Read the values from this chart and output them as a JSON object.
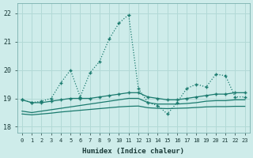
{
  "xlabel": "Humidex (Indice chaleur)",
  "xlim": [
    -0.5,
    23.5
  ],
  "ylim": [
    17.8,
    22.35
  ],
  "yticks": [
    18,
    19,
    20,
    21,
    22
  ],
  "xticks": [
    0,
    1,
    2,
    3,
    4,
    5,
    6,
    7,
    8,
    9,
    10,
    11,
    12,
    13,
    14,
    15,
    16,
    17,
    18,
    19,
    20,
    21,
    22,
    23
  ],
  "bg_color": "#ceecea",
  "grid_color": "#b2d9d6",
  "line_color": "#1a7a6e",
  "line1_x": [
    0,
    1,
    2,
    3,
    4,
    5,
    6,
    7,
    8,
    9,
    10,
    11,
    12,
    13,
    14,
    15,
    16,
    17,
    18,
    19,
    20,
    21,
    22,
    23
  ],
  "line1_y": [
    18.95,
    18.85,
    18.9,
    19.0,
    19.55,
    20.0,
    19.05,
    19.9,
    20.3,
    21.1,
    21.65,
    21.95,
    19.35,
    18.85,
    18.75,
    18.45,
    18.85,
    19.35,
    19.5,
    19.4,
    19.85,
    19.8,
    19.05,
    19.05
  ],
  "line2_x": [
    0,
    1,
    2,
    3,
    4,
    5,
    6,
    7,
    8,
    9,
    10,
    11,
    12,
    13,
    14,
    15,
    16,
    17,
    18,
    19,
    20,
    21,
    22,
    23
  ],
  "line2_y": [
    18.95,
    18.85,
    18.85,
    18.9,
    18.95,
    19.0,
    19.0,
    19.0,
    19.05,
    19.1,
    19.15,
    19.2,
    19.2,
    19.05,
    19.0,
    18.95,
    18.95,
    19.0,
    19.05,
    19.1,
    19.15,
    19.15,
    19.2,
    19.2
  ],
  "line3_x": [
    0,
    1,
    2,
    3,
    4,
    5,
    6,
    7,
    8,
    9,
    10,
    11,
    12,
    13,
    14,
    15,
    16,
    17,
    18,
    19,
    20,
    21,
    22,
    23
  ],
  "line3_y": [
    18.55,
    18.5,
    18.55,
    18.6,
    18.65,
    18.7,
    18.75,
    18.8,
    18.85,
    18.9,
    18.95,
    19.0,
    19.0,
    18.85,
    18.8,
    18.8,
    18.8,
    18.82,
    18.85,
    18.9,
    18.92,
    18.92,
    18.95,
    18.95
  ],
  "line4_x": [
    0,
    1,
    2,
    3,
    4,
    5,
    6,
    7,
    8,
    9,
    10,
    11,
    12,
    13,
    14,
    15,
    16,
    17,
    18,
    19,
    20,
    21,
    22,
    23
  ],
  "line4_y": [
    18.45,
    18.42,
    18.45,
    18.48,
    18.52,
    18.55,
    18.58,
    18.61,
    18.64,
    18.67,
    18.7,
    18.72,
    18.73,
    18.67,
    18.65,
    18.64,
    18.65,
    18.66,
    18.68,
    18.7,
    18.71,
    18.71,
    18.72,
    18.72
  ]
}
